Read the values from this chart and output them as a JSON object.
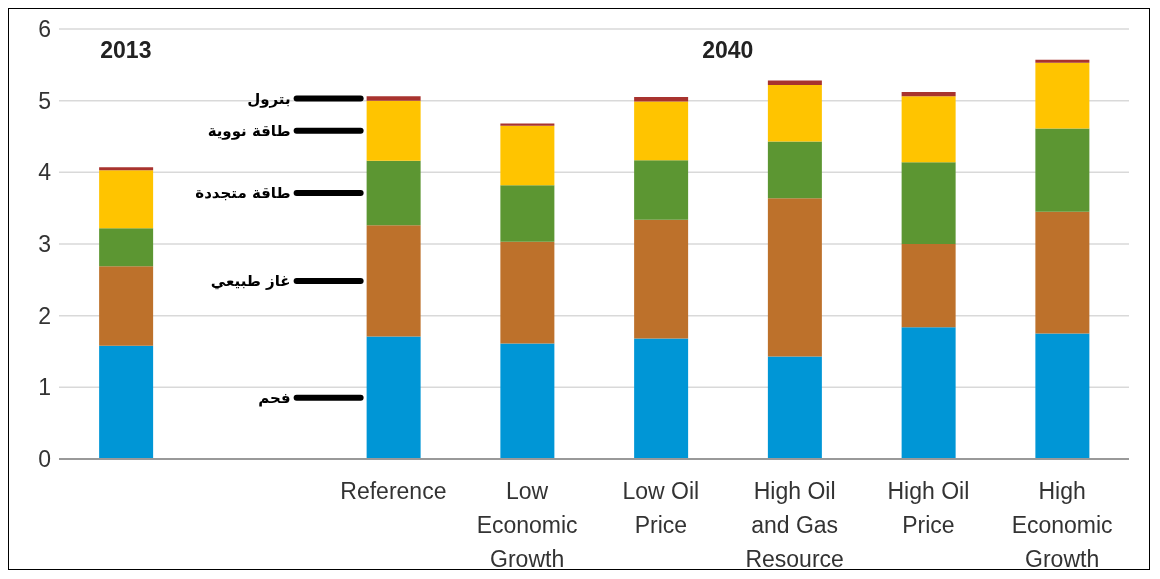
{
  "chart_data": {
    "type": "bar",
    "stacked": true,
    "categories": [
      null,
      null,
      "Reference",
      "Low Economic Growth",
      "Low Oil Price",
      "High Oil and Gas Resource",
      "High Oil Price",
      "High Economic Growth"
    ],
    "series": [
      {
        "name": "فحم",
        "color": "#0096d6",
        "values": [
          1.58,
          null,
          1.71,
          1.61,
          1.68,
          1.43,
          1.84,
          1.75
        ]
      },
      {
        "name": "غاز طبيعي",
        "color": "#bd712b",
        "values": [
          1.11,
          null,
          1.55,
          1.42,
          1.66,
          2.21,
          1.16,
          1.7
        ]
      },
      {
        "name": "طاقة متجددة",
        "color": "#5c9632",
        "values": [
          0.53,
          null,
          0.9,
          0.79,
          0.83,
          0.79,
          1.14,
          1.16
        ]
      },
      {
        "name": "طاقة نووية",
        "color": "#ffc400",
        "values": [
          0.81,
          null,
          0.84,
          0.83,
          0.82,
          0.79,
          0.92,
          0.92
        ]
      },
      {
        "name": "بترول",
        "color": "#a8332e",
        "values": [
          0.04,
          null,
          0.06,
          0.03,
          0.06,
          0.06,
          0.06,
          0.04
        ]
      }
    ],
    "ylim": [
      0,
      6
    ],
    "yticks": [
      0,
      1,
      2,
      3,
      4,
      5,
      6
    ],
    "grid": "y",
    "annotations": [
      "2013",
      "2040"
    ]
  }
}
